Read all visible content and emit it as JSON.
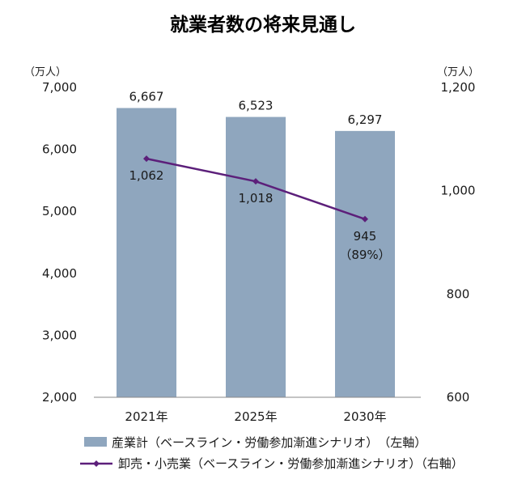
{
  "chart_data": {
    "type": "bar+line",
    "title": "就業者数の将来見通し",
    "categories": [
      "2021年",
      "2025年",
      "2030年"
    ],
    "left_axis": {
      "unit": "（万人）",
      "ylim": [
        2000,
        7000
      ],
      "ticks": [
        2000,
        3000,
        4000,
        5000,
        6000,
        7000
      ],
      "tick_labels": [
        "2,000",
        "3,000",
        "4,000",
        "5,000",
        "6,000",
        "7,000"
      ]
    },
    "right_axis": {
      "unit": "（万人）",
      "ylim": [
        600,
        1200
      ],
      "ticks": [
        600,
        800,
        1000,
        1200
      ],
      "tick_labels": [
        "600",
        "800",
        "1,000",
        "1,200"
      ]
    },
    "series": [
      {
        "name": "産業計（ベースライン・労働参加漸進シナリオ）　（左軸）",
        "kind": "bar",
        "axis": "left",
        "color": "#8fa6be",
        "values": [
          6667,
          6523,
          6297
        ],
        "labels": [
          "6,667",
          "6,523",
          "6,297"
        ]
      },
      {
        "name": "卸売・小売業（ベースライン・労働参加漸進シナリオ）（右軸）",
        "kind": "line",
        "axis": "right",
        "color": "#5c1f7a",
        "values": [
          1062,
          1018,
          945
        ],
        "labels": [
          "1,062",
          "1,018",
          "945"
        ],
        "extra_labels": [
          "",
          "",
          "（89%）"
        ]
      }
    ],
    "grid": false,
    "legend_position": "bottom"
  }
}
